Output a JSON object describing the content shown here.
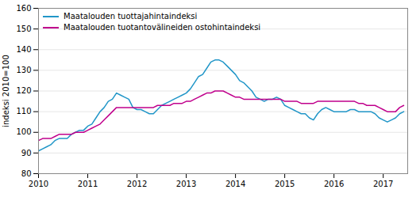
{
  "chart_data": {
    "type": "line",
    "x": [
      2010,
      2010.083333,
      2010.166667,
      2010.25,
      2010.333333,
      2010.416667,
      2010.5,
      2010.583333,
      2010.666667,
      2010.75,
      2010.833333,
      2010.916667,
      2011,
      2011.083333,
      2011.166667,
      2011.25,
      2011.333333,
      2011.416667,
      2011.5,
      2011.583333,
      2011.666667,
      2011.75,
      2011.833333,
      2011.916667,
      2012,
      2012.083333,
      2012.166667,
      2012.25,
      2012.333333,
      2012.416667,
      2012.5,
      2012.583333,
      2012.666667,
      2012.75,
      2012.833333,
      2012.916667,
      2013,
      2013.083333,
      2013.166667,
      2013.25,
      2013.333333,
      2013.416667,
      2013.5,
      2013.583333,
      2013.666667,
      2013.75,
      2013.833333,
      2013.916667,
      2014,
      2014.083333,
      2014.166667,
      2014.25,
      2014.333333,
      2014.416667,
      2014.5,
      2014.583333,
      2014.666667,
      2014.75,
      2014.833333,
      2014.916667,
      2015,
      2015.083333,
      2015.166667,
      2015.25,
      2015.333333,
      2015.416667,
      2015.5,
      2015.583333,
      2015.666667,
      2015.75,
      2015.833333,
      2015.916667,
      2016,
      2016.083333,
      2016.166667,
      2016.25,
      2016.333333,
      2016.416667,
      2016.5,
      2016.583333,
      2016.666667,
      2016.75,
      2016.833333,
      2016.916667,
      2017,
      2017.083333,
      2017.166667,
      2017.25,
      2017.333333,
      2017.416667
    ],
    "series": [
      {
        "name": "Maatalouden tuottajahintaindeksi",
        "color": "#2196c8",
        "values": [
          91,
          92,
          93,
          94,
          96,
          97,
          97,
          97,
          99,
          100,
          101,
          101,
          103,
          104,
          107,
          110,
          112,
          115,
          116,
          119,
          118,
          117,
          116,
          112,
          111,
          111,
          110,
          109,
          109,
          111,
          113,
          114,
          115,
          116,
          117,
          118,
          119,
          121,
          124,
          127,
          128,
          131,
          134,
          135,
          135,
          134,
          132,
          130,
          128,
          125,
          124,
          122,
          120,
          117,
          116,
          115,
          116,
          116,
          117,
          116,
          113,
          112,
          111,
          110,
          109,
          109,
          107,
          106,
          109,
          111,
          112,
          111,
          110,
          110,
          110,
          110,
          111,
          111,
          110,
          110,
          110,
          110,
          109,
          107,
          106,
          105,
          106,
          107,
          109,
          110
        ]
      },
      {
        "name": "Maatalouden tuotantovälineiden ostohintaindeksi",
        "color": "#c0008c",
        "values": [
          96,
          97,
          97,
          97,
          98,
          99,
          99,
          99,
          99,
          100,
          100,
          100,
          101,
          102,
          103,
          104,
          106,
          108,
          110,
          112,
          112,
          112,
          112,
          112,
          112,
          112,
          112,
          112,
          112,
          113,
          113,
          113,
          113,
          114,
          114,
          114,
          115,
          115,
          116,
          117,
          118,
          119,
          119,
          120,
          120,
          120,
          119,
          118,
          117,
          117,
          116,
          116,
          116,
          116,
          116,
          116,
          116,
          116,
          116,
          116,
          115,
          115,
          115,
          115,
          114,
          114,
          114,
          114,
          115,
          115,
          115,
          115,
          115,
          115,
          115,
          115,
          115,
          115,
          114,
          114,
          113,
          113,
          113,
          112,
          111,
          110,
          110,
          110,
          112,
          113
        ]
      }
    ],
    "ylabel": "indeksi 2010=100",
    "xlim": [
      2010,
      2017.496667
    ],
    "xticks": [
      2010,
      2011,
      2012,
      2013,
      2014,
      2015,
      2016,
      2017
    ],
    "ylim": [
      80,
      160
    ],
    "yticks": [
      80,
      90,
      100,
      110,
      120,
      130,
      140,
      150,
      160
    ],
    "grid": "y",
    "legend": "upper left"
  }
}
